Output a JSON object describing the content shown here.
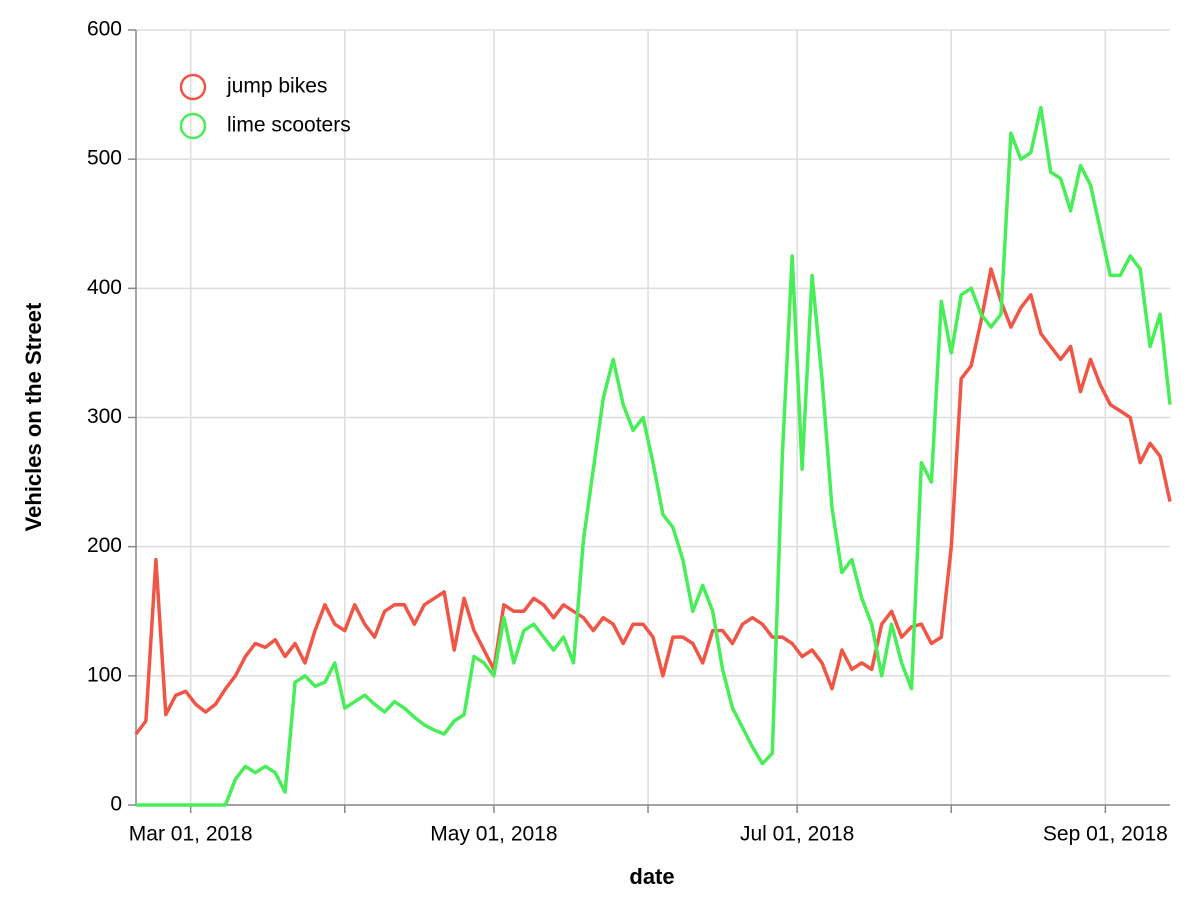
{
  "chart_data": {
    "type": "line",
    "xlabel": "date",
    "ylabel": "Vehicles on the Street",
    "x": [
      "2018-02-18",
      "2018-02-20",
      "2018-02-22",
      "2018-02-24",
      "2018-02-26",
      "2018-02-28",
      "2018-03-02",
      "2018-03-04",
      "2018-03-06",
      "2018-03-08",
      "2018-03-10",
      "2018-03-12",
      "2018-03-14",
      "2018-03-16",
      "2018-03-18",
      "2018-03-20",
      "2018-03-22",
      "2018-03-24",
      "2018-03-26",
      "2018-03-28",
      "2018-03-30",
      "2018-04-01",
      "2018-04-03",
      "2018-04-05",
      "2018-04-07",
      "2018-04-09",
      "2018-04-11",
      "2018-04-13",
      "2018-04-15",
      "2018-04-17",
      "2018-04-19",
      "2018-04-21",
      "2018-04-23",
      "2018-04-25",
      "2018-04-27",
      "2018-04-29",
      "2018-05-01",
      "2018-05-03",
      "2018-05-05",
      "2018-05-07",
      "2018-05-09",
      "2018-05-11",
      "2018-05-13",
      "2018-05-15",
      "2018-05-17",
      "2018-05-19",
      "2018-05-21",
      "2018-05-23",
      "2018-05-25",
      "2018-05-27",
      "2018-05-29",
      "2018-05-31",
      "2018-06-02",
      "2018-06-04",
      "2018-06-06",
      "2018-06-08",
      "2018-06-10",
      "2018-06-12",
      "2018-06-14",
      "2018-06-16",
      "2018-06-18",
      "2018-06-20",
      "2018-06-22",
      "2018-06-24",
      "2018-06-26",
      "2018-06-28",
      "2018-06-30",
      "2018-07-02",
      "2018-07-04",
      "2018-07-06",
      "2018-07-08",
      "2018-07-10",
      "2018-07-12",
      "2018-07-14",
      "2018-07-16",
      "2018-07-18",
      "2018-07-20",
      "2018-07-22",
      "2018-07-24",
      "2018-07-26",
      "2018-07-28",
      "2018-07-30",
      "2018-08-01",
      "2018-08-03",
      "2018-08-05",
      "2018-08-07",
      "2018-08-09",
      "2018-08-11",
      "2018-08-13",
      "2018-08-15",
      "2018-08-17",
      "2018-08-19",
      "2018-08-21",
      "2018-08-23",
      "2018-08-25",
      "2018-08-27",
      "2018-08-29",
      "2018-08-31",
      "2018-09-02",
      "2018-09-04",
      "2018-09-06",
      "2018-09-08",
      "2018-09-10",
      "2018-09-12",
      "2018-09-14"
    ],
    "series": [
      {
        "name": "jump bikes",
        "color": "#f05545",
        "values": [
          55,
          65,
          190,
          70,
          85,
          88,
          78,
          72,
          78,
          90,
          100,
          115,
          125,
          122,
          128,
          115,
          125,
          110,
          135,
          155,
          140,
          135,
          155,
          140,
          130,
          150,
          155,
          155,
          140,
          155,
          160,
          165,
          120,
          160,
          135,
          120,
          105,
          155,
          150,
          150,
          160,
          155,
          145,
          155,
          150,
          145,
          135,
          145,
          140,
          125,
          140,
          140,
          130,
          100,
          130,
          130,
          125,
          110,
          135,
          135,
          125,
          140,
          145,
          140,
          130,
          130,
          125,
          115,
          120,
          110,
          90,
          120,
          105,
          110,
          105,
          140,
          150,
          130,
          138,
          140,
          125,
          130,
          200,
          330,
          340,
          375,
          415,
          390,
          370,
          385,
          395,
          365,
          355,
          345,
          355,
          320,
          345,
          325,
          310,
          305,
          300,
          265,
          280,
          270,
          235
        ]
      },
      {
        "name": "lime scooters",
        "color": "#48ee58",
        "values": [
          0,
          0,
          0,
          0,
          0,
          0,
          0,
          0,
          0,
          0,
          20,
          30,
          25,
          30,
          25,
          10,
          95,
          100,
          92,
          95,
          110,
          75,
          80,
          85,
          78,
          72,
          80,
          75,
          68,
          62,
          58,
          55,
          65,
          70,
          115,
          110,
          100,
          145,
          110,
          135,
          140,
          130,
          120,
          130,
          110,
          205,
          260,
          315,
          345,
          310,
          290,
          300,
          265,
          225,
          215,
          190,
          150,
          170,
          150,
          105,
          75,
          60,
          45,
          32,
          40,
          270,
          425,
          260,
          410,
          330,
          230,
          180,
          190,
          160,
          140,
          100,
          140,
          110,
          90,
          265,
          250,
          390,
          350,
          395,
          400,
          380,
          370,
          380,
          520,
          500,
          505,
          540,
          490,
          485,
          460,
          495,
          480,
          445,
          410,
          410,
          425,
          415,
          355,
          380,
          310
        ]
      }
    ],
    "xlim": [
      "2018-02-18",
      "2018-09-14"
    ],
    "xticks": [
      {
        "value": "2018-03-01",
        "label": "Mar 01, 2018"
      },
      {
        "value": "2018-04-01",
        "label": null
      },
      {
        "value": "2018-05-01",
        "label": "May 01, 2018"
      },
      {
        "value": "2018-06-01",
        "label": null
      },
      {
        "value": "2018-07-01",
        "label": "Jul 01, 2018"
      },
      {
        "value": "2018-08-01",
        "label": null
      },
      {
        "value": "2018-09-01",
        "label": "Sep 01, 2018"
      }
    ],
    "ylim": [
      0,
      600
    ],
    "yticks": [
      0,
      100,
      200,
      300,
      400,
      500,
      600
    ],
    "grid": true,
    "legend": "top-left"
  }
}
